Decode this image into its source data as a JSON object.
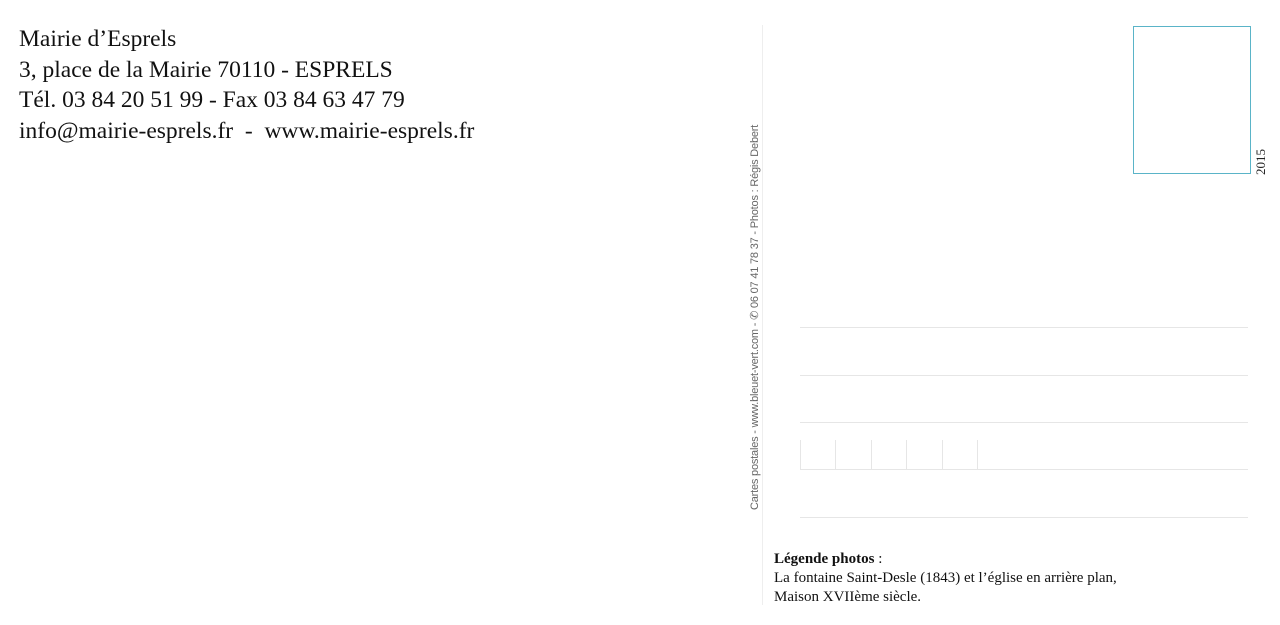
{
  "sender": {
    "name": "Mairie d’Esprels",
    "address": "3, place de la Mairie 70110 - ESPRELS",
    "phone_fax": "Tél. 03 84 20 51 99 - Fax 03 84 63 47 79",
    "web": "info@mairie-esprels.fr  -  www.mairie-esprels.fr"
  },
  "credit": "Cartes postales - www.bleuet-vert.com  -  ✆ 06 07 41 78 37 - Photos : Régis Debert",
  "stamp": {
    "year": "2015",
    "border_color": "#5ab4c8"
  },
  "legend": {
    "title": "Légende photos",
    "separator": " :",
    "lines": [
      "La fontaine Saint-Desle (1843) et l’église en arrière plan,",
      "Maison XVIIème siècle."
    ]
  }
}
